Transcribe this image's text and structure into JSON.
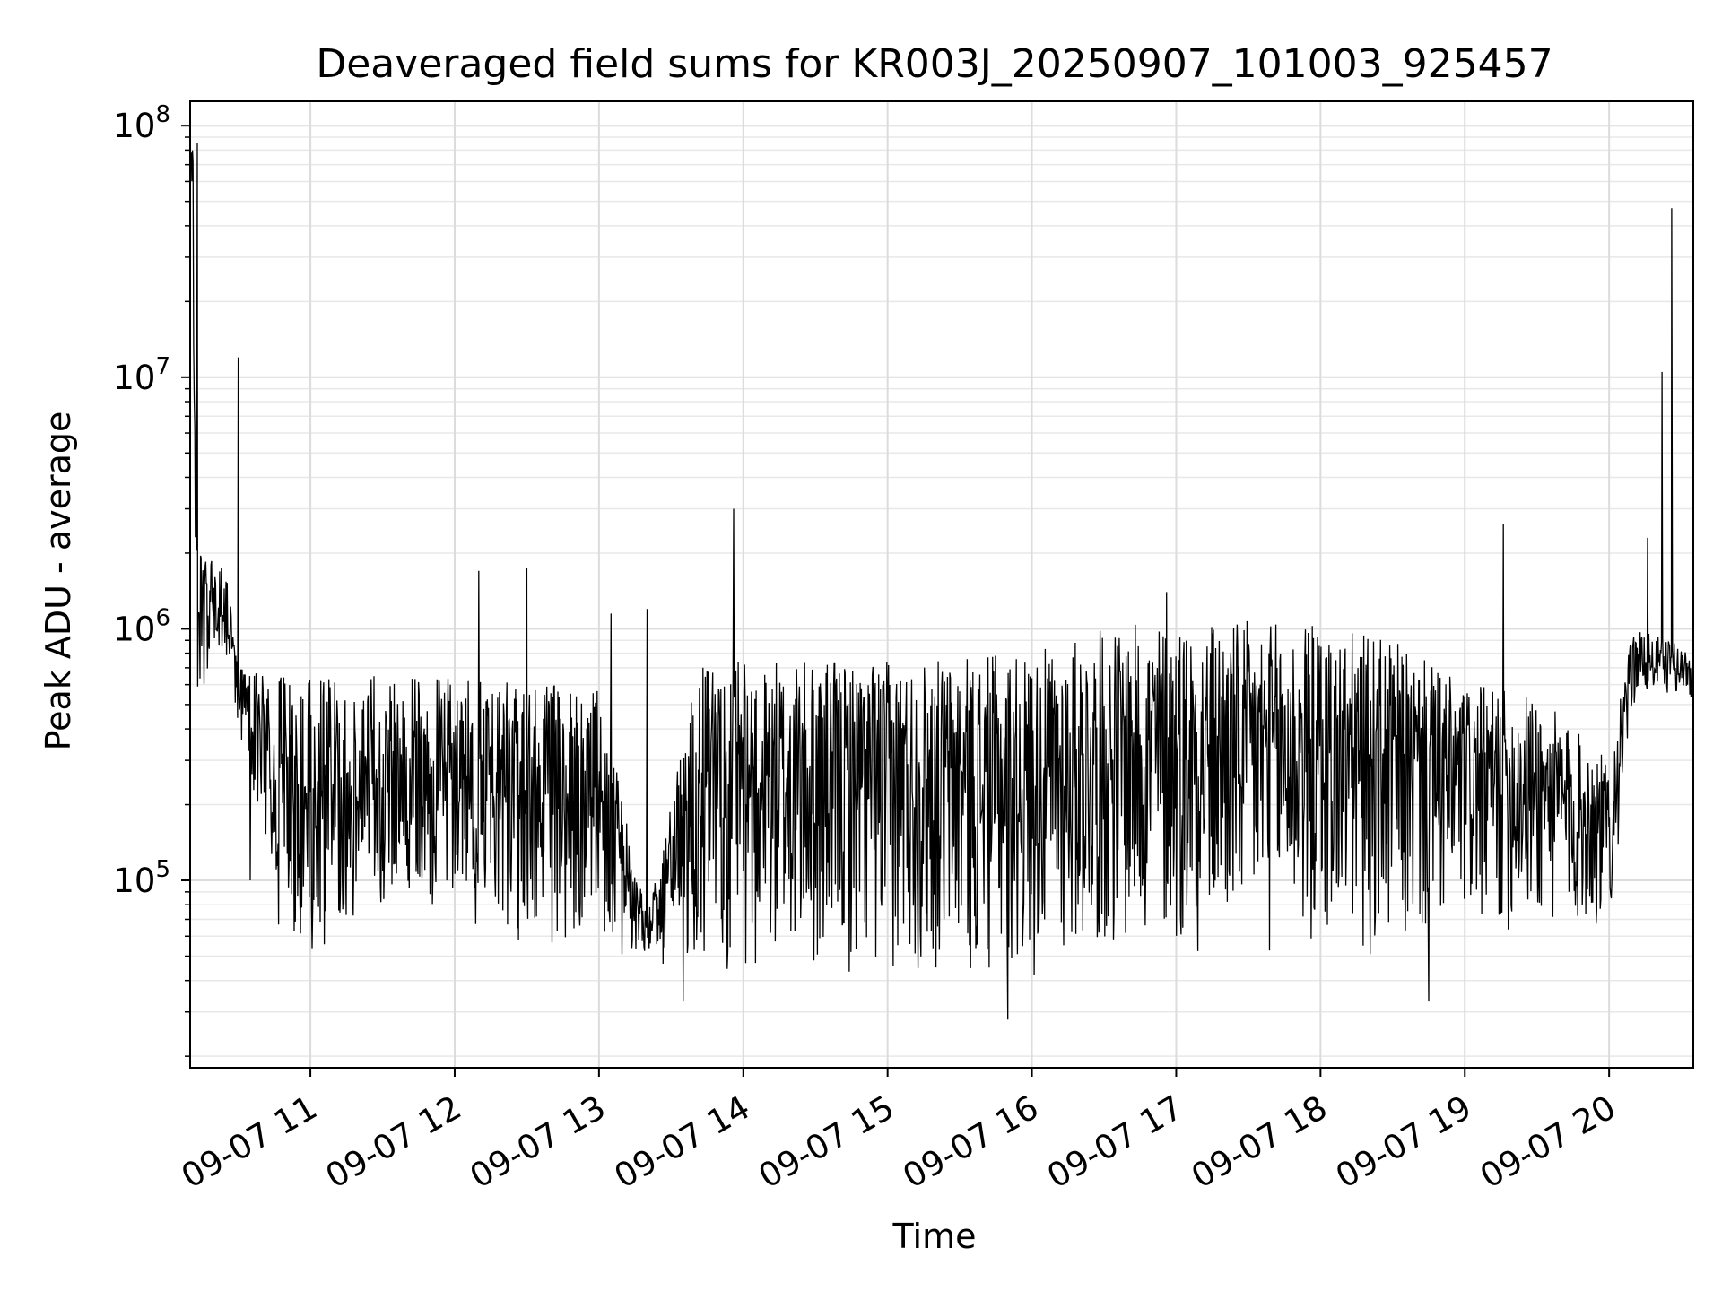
{
  "chart_data": {
    "type": "line",
    "title": "Deaveraged field sums for KR003J_20250907_101003_925457",
    "xlabel": "Time",
    "ylabel": "Peak ADU - average",
    "y_scale": "log",
    "ylim": [
      18000,
      125000000
    ],
    "xlim": [
      "2025-09-07 10:10",
      "2025-09-07 20:35"
    ],
    "grid": true,
    "line_color": "#000000",
    "x_ticks": [
      {
        "x": "2025-09-07 11:00",
        "label": "09-07 11"
      },
      {
        "x": "2025-09-07 12:00",
        "label": "09-07 12"
      },
      {
        "x": "2025-09-07 13:00",
        "label": "09-07 13"
      },
      {
        "x": "2025-09-07 14:00",
        "label": "09-07 14"
      },
      {
        "x": "2025-09-07 15:00",
        "label": "09-07 15"
      },
      {
        "x": "2025-09-07 16:00",
        "label": "09-07 16"
      },
      {
        "x": "2025-09-07 17:00",
        "label": "09-07 17"
      },
      {
        "x": "2025-09-07 18:00",
        "label": "09-07 18"
      },
      {
        "x": "2025-09-07 19:00",
        "label": "09-07 19"
      },
      {
        "x": "2025-09-07 20:00",
        "label": "09-07 20"
      }
    ],
    "y_ticks": [
      {
        "y": 100000,
        "base": "10",
        "exp": "5"
      },
      {
        "y": 1000000,
        "base": "10",
        "exp": "6"
      },
      {
        "y": 10000000,
        "base": "10",
        "exp": "7"
      },
      {
        "y": 100000000,
        "base": "10",
        "exp": "8"
      }
    ],
    "envelope": [
      {
        "t": "2025-09-07 10:10",
        "low": 60000000,
        "high": 80000000
      },
      {
        "t": "2025-09-07 10:13",
        "low": 500000,
        "high": 2000000
      },
      {
        "t": "2025-09-07 10:25",
        "low": 700000,
        "high": 1800000
      },
      {
        "t": "2025-09-07 10:30",
        "low": 400000,
        "high": 700000
      },
      {
        "t": "2025-09-07 10:45",
        "low": 60000,
        "high": 700000
      },
      {
        "t": "2025-09-07 11:00",
        "low": 45000,
        "high": 650000
      },
      {
        "t": "2025-09-07 11:30",
        "low": 80000,
        "high": 650000
      },
      {
        "t": "2025-09-07 12:00",
        "low": 60000,
        "high": 650000
      },
      {
        "t": "2025-09-07 12:30",
        "low": 55000,
        "high": 600000
      },
      {
        "t": "2025-09-07 13:00",
        "low": 50000,
        "high": 600000
      },
      {
        "t": "2025-09-07 13:20",
        "low": 50000,
        "high": 70000
      },
      {
        "t": "2025-09-07 13:40",
        "low": 40000,
        "high": 700000
      },
      {
        "t": "2025-09-07 14:00",
        "low": 40000,
        "high": 750000
      },
      {
        "t": "2025-09-07 15:00",
        "low": 40000,
        "high": 750000
      },
      {
        "t": "2025-09-07 16:00",
        "low": 40000,
        "high": 800000
      },
      {
        "t": "2025-09-07 16:30",
        "low": 50000,
        "high": 1000000
      },
      {
        "t": "2025-09-07 17:00",
        "low": 50000,
        "high": 1100000
      },
      {
        "t": "2025-09-07 18:00",
        "low": 50000,
        "high": 1050000
      },
      {
        "t": "2025-09-07 18:30",
        "low": 45000,
        "high": 900000
      },
      {
        "t": "2025-09-07 19:00",
        "low": 60000,
        "high": 600000
      },
      {
        "t": "2025-09-07 19:30",
        "low": 60000,
        "high": 550000
      },
      {
        "t": "2025-09-07 20:00",
        "low": 60000,
        "high": 300000
      },
      {
        "t": "2025-09-07 20:10",
        "low": 500000,
        "high": 1000000
      },
      {
        "t": "2025-09-07 20:25",
        "low": 550000,
        "high": 900000
      },
      {
        "t": "2025-09-07 20:35",
        "low": 500000,
        "high": 800000
      }
    ],
    "peaks": [
      {
        "t": "2025-09-07 10:13",
        "y": 85000000
      },
      {
        "t": "2025-09-07 10:30",
        "y": 12000000
      },
      {
        "t": "2025-09-07 12:10",
        "y": 1700000
      },
      {
        "t": "2025-09-07 12:30",
        "y": 1750000
      },
      {
        "t": "2025-09-07 13:05",
        "y": 1150000
      },
      {
        "t": "2025-09-07 13:20",
        "y": 1200000
      },
      {
        "t": "2025-09-07 13:56",
        "y": 3000000
      },
      {
        "t": "2025-09-07 16:56",
        "y": 1400000
      },
      {
        "t": "2025-09-07 19:16",
        "y": 2600000
      },
      {
        "t": "2025-09-07 20:16",
        "y": 2300000
      },
      {
        "t": "2025-09-07 20:22",
        "y": 10500000
      },
      {
        "t": "2025-09-07 20:26",
        "y": 47000000
      }
    ],
    "dips": [
      {
        "t": "2025-09-07 15:50",
        "y": 28000
      },
      {
        "t": "2025-09-07 18:45",
        "y": 33000
      },
      {
        "t": "2025-09-07 13:35",
        "y": 33000
      },
      {
        "t": "2025-09-07 10:35",
        "y": 100000
      }
    ]
  }
}
